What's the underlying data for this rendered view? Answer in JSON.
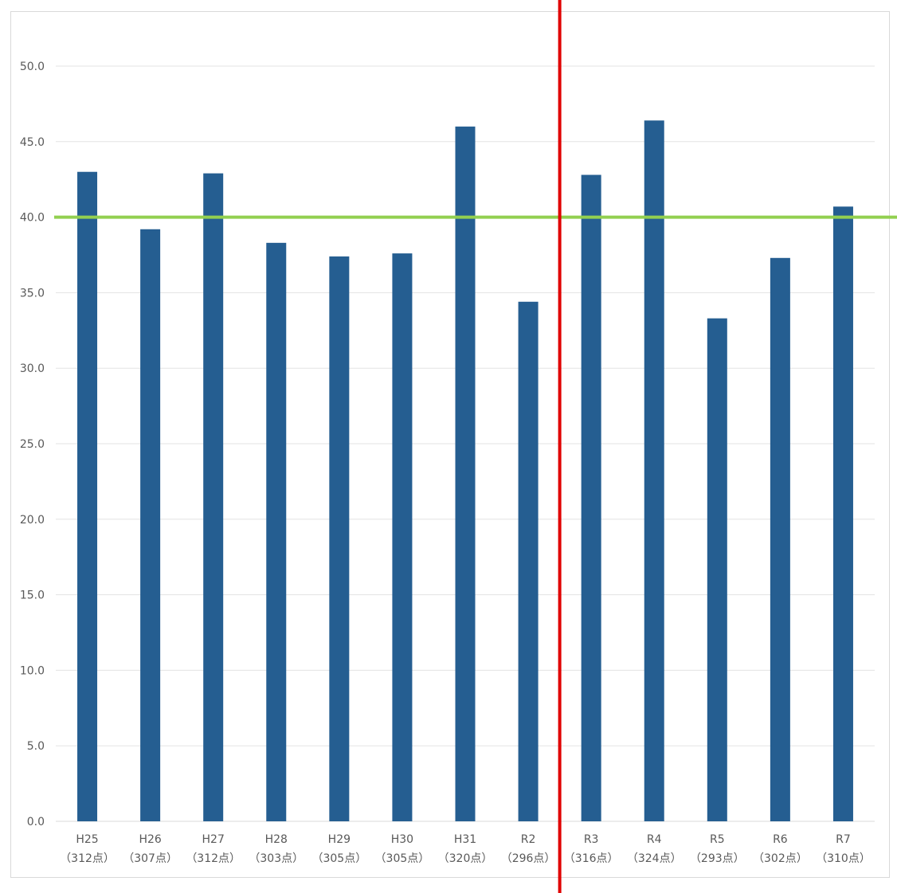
{
  "chart_data": {
    "type": "bar",
    "categories": [
      {
        "line1": "H25",
        "line2": "（312点）"
      },
      {
        "line1": "H26",
        "line2": "（307点）"
      },
      {
        "line1": "H27",
        "line2": "（312点）"
      },
      {
        "line1": "H28",
        "line2": "（303点）"
      },
      {
        "line1": "H29",
        "line2": "（305点）"
      },
      {
        "line1": "H30",
        "line2": "（305点）"
      },
      {
        "line1": "H31",
        "line2": "（320点）"
      },
      {
        "line1": "R2",
        "line2": "（296点）"
      },
      {
        "line1": "R3",
        "line2": "（316点）"
      },
      {
        "line1": "R4",
        "line2": "（324点）"
      },
      {
        "line1": "R5",
        "line2": "（293点）"
      },
      {
        "line1": "R6",
        "line2": "（302点）"
      },
      {
        "line1": "R7",
        "line2": "（310点）"
      }
    ],
    "values": [
      43.0,
      39.2,
      42.9,
      38.3,
      37.4,
      37.6,
      46.0,
      34.4,
      42.8,
      46.4,
      33.3,
      37.3,
      40.7
    ],
    "ylim": [
      0,
      50
    ],
    "yticks": [
      "0.0",
      "5.0",
      "10.0",
      "15.0",
      "20.0",
      "25.0",
      "30.0",
      "35.0",
      "40.0",
      "45.0",
      "50.0"
    ],
    "ytick_values": [
      0,
      5,
      10,
      15,
      20,
      25,
      30,
      35,
      40,
      45,
      50
    ],
    "grid": true,
    "reference_line": {
      "orientation": "horizontal",
      "value": 40.0,
      "color": "#92d050"
    },
    "divider_line": {
      "orientation": "vertical",
      "between": [
        "R2",
        "R3"
      ],
      "color": "#e00000"
    },
    "bar_color": "#255e91",
    "title": "",
    "xlabel": "",
    "ylabel": ""
  }
}
